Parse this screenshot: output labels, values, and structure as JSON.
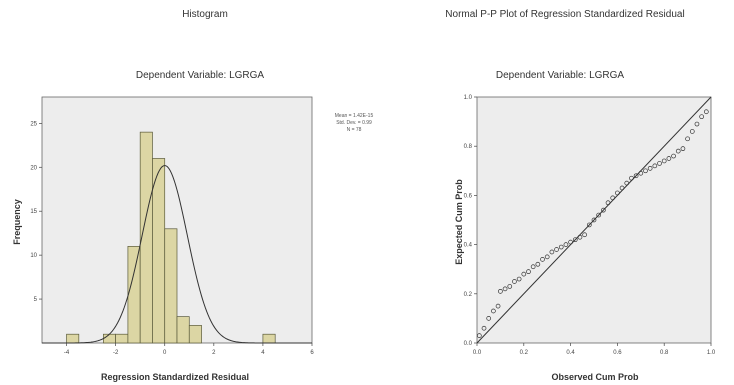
{
  "left_title": "Histogram",
  "right_title": "Normal P-P Plot of Regression Standardized Residual",
  "chart_data": [
    {
      "type": "bar",
      "title": "Dependent Variable: LGRGA",
      "xlabel": "Regression Standardized Residual",
      "ylabel": "Frequency",
      "xlim": [
        -5,
        6
      ],
      "ylim": [
        0,
        28
      ],
      "xticks": [
        -4,
        -2,
        0,
        2,
        4,
        6
      ],
      "xtick_labels": [
        "-4",
        "-2",
        "0",
        "2",
        "4",
        "6"
      ],
      "yticks": [
        5,
        10,
        15,
        20,
        25
      ],
      "ytick_labels": [
        "5",
        "10",
        "15",
        "20",
        "25"
      ],
      "bin_width": 0.5,
      "bins": [
        {
          "x0": -4.0,
          "x1": -3.5,
          "count": 1
        },
        {
          "x0": -2.5,
          "x1": -2.0,
          "count": 1
        },
        {
          "x0": -2.0,
          "x1": -1.5,
          "count": 1
        },
        {
          "x0": -1.5,
          "x1": -1.0,
          "count": 11
        },
        {
          "x0": -1.0,
          "x1": -0.5,
          "count": 24
        },
        {
          "x0": -0.5,
          "x1": 0.0,
          "count": 21
        },
        {
          "x0": 0.0,
          "x1": 0.5,
          "count": 13
        },
        {
          "x0": 0.5,
          "x1": 1.0,
          "count": 3
        },
        {
          "x0": 1.0,
          "x1": 1.5,
          "count": 2
        },
        {
          "x0": 4.0,
          "x1": 4.5,
          "count": 1
        }
      ],
      "normal_curve": {
        "mean": 0.0,
        "sd": 0.92,
        "peak": 20.2
      },
      "bar_color": "#dcd6a4",
      "bar_stroke": "#5a5a3a",
      "plot_bg": "#ededed",
      "stats_lines": [
        "Mean = 1.42E-15",
        "Std. Dev. = 0.99",
        "N = 78"
      ]
    },
    {
      "type": "scatter",
      "title": "Dependent Variable: LGRGA",
      "xlabel": "Observed Cum Prob",
      "ylabel": "Expected Cum Prob",
      "xlim": [
        0,
        1
      ],
      "ylim": [
        0,
        1
      ],
      "xticks": [
        0,
        0.2,
        0.4,
        0.6,
        0.8,
        1.0
      ],
      "xtick_labels": [
        "0.0",
        "0.2",
        "0.4",
        "0.6",
        "0.8",
        "1.0"
      ],
      "yticks": [
        0,
        0.2,
        0.4,
        0.6,
        0.8,
        1.0
      ],
      "ytick_labels": [
        "0.0",
        "0.2",
        "0.4",
        "0.6",
        "0.8",
        "1.0"
      ],
      "reference_line": [
        [
          0,
          0
        ],
        [
          1,
          1
        ]
      ],
      "points": [
        [
          0.01,
          0.03
        ],
        [
          0.03,
          0.06
        ],
        [
          0.05,
          0.1
        ],
        [
          0.07,
          0.13
        ],
        [
          0.09,
          0.15
        ],
        [
          0.1,
          0.21
        ],
        [
          0.12,
          0.22
        ],
        [
          0.14,
          0.23
        ],
        [
          0.16,
          0.25
        ],
        [
          0.18,
          0.26
        ],
        [
          0.2,
          0.28
        ],
        [
          0.22,
          0.29
        ],
        [
          0.24,
          0.31
        ],
        [
          0.26,
          0.32
        ],
        [
          0.28,
          0.34
        ],
        [
          0.3,
          0.35
        ],
        [
          0.32,
          0.37
        ],
        [
          0.34,
          0.38
        ],
        [
          0.36,
          0.39
        ],
        [
          0.38,
          0.4
        ],
        [
          0.4,
          0.41
        ],
        [
          0.42,
          0.42
        ],
        [
          0.44,
          0.43
        ],
        [
          0.46,
          0.44
        ],
        [
          0.48,
          0.48
        ],
        [
          0.5,
          0.5
        ],
        [
          0.52,
          0.52
        ],
        [
          0.54,
          0.54
        ],
        [
          0.56,
          0.57
        ],
        [
          0.58,
          0.59
        ],
        [
          0.6,
          0.61
        ],
        [
          0.62,
          0.63
        ],
        [
          0.64,
          0.65
        ],
        [
          0.66,
          0.67
        ],
        [
          0.68,
          0.68
        ],
        [
          0.7,
          0.69
        ],
        [
          0.72,
          0.7
        ],
        [
          0.74,
          0.71
        ],
        [
          0.76,
          0.72
        ],
        [
          0.78,
          0.73
        ],
        [
          0.8,
          0.74
        ],
        [
          0.82,
          0.75
        ],
        [
          0.84,
          0.76
        ],
        [
          0.86,
          0.78
        ],
        [
          0.88,
          0.79
        ],
        [
          0.9,
          0.83
        ],
        [
          0.92,
          0.86
        ],
        [
          0.94,
          0.89
        ],
        [
          0.96,
          0.92
        ],
        [
          0.98,
          0.94
        ]
      ],
      "point_color": "#333333",
      "plot_bg": "#ededed"
    }
  ]
}
